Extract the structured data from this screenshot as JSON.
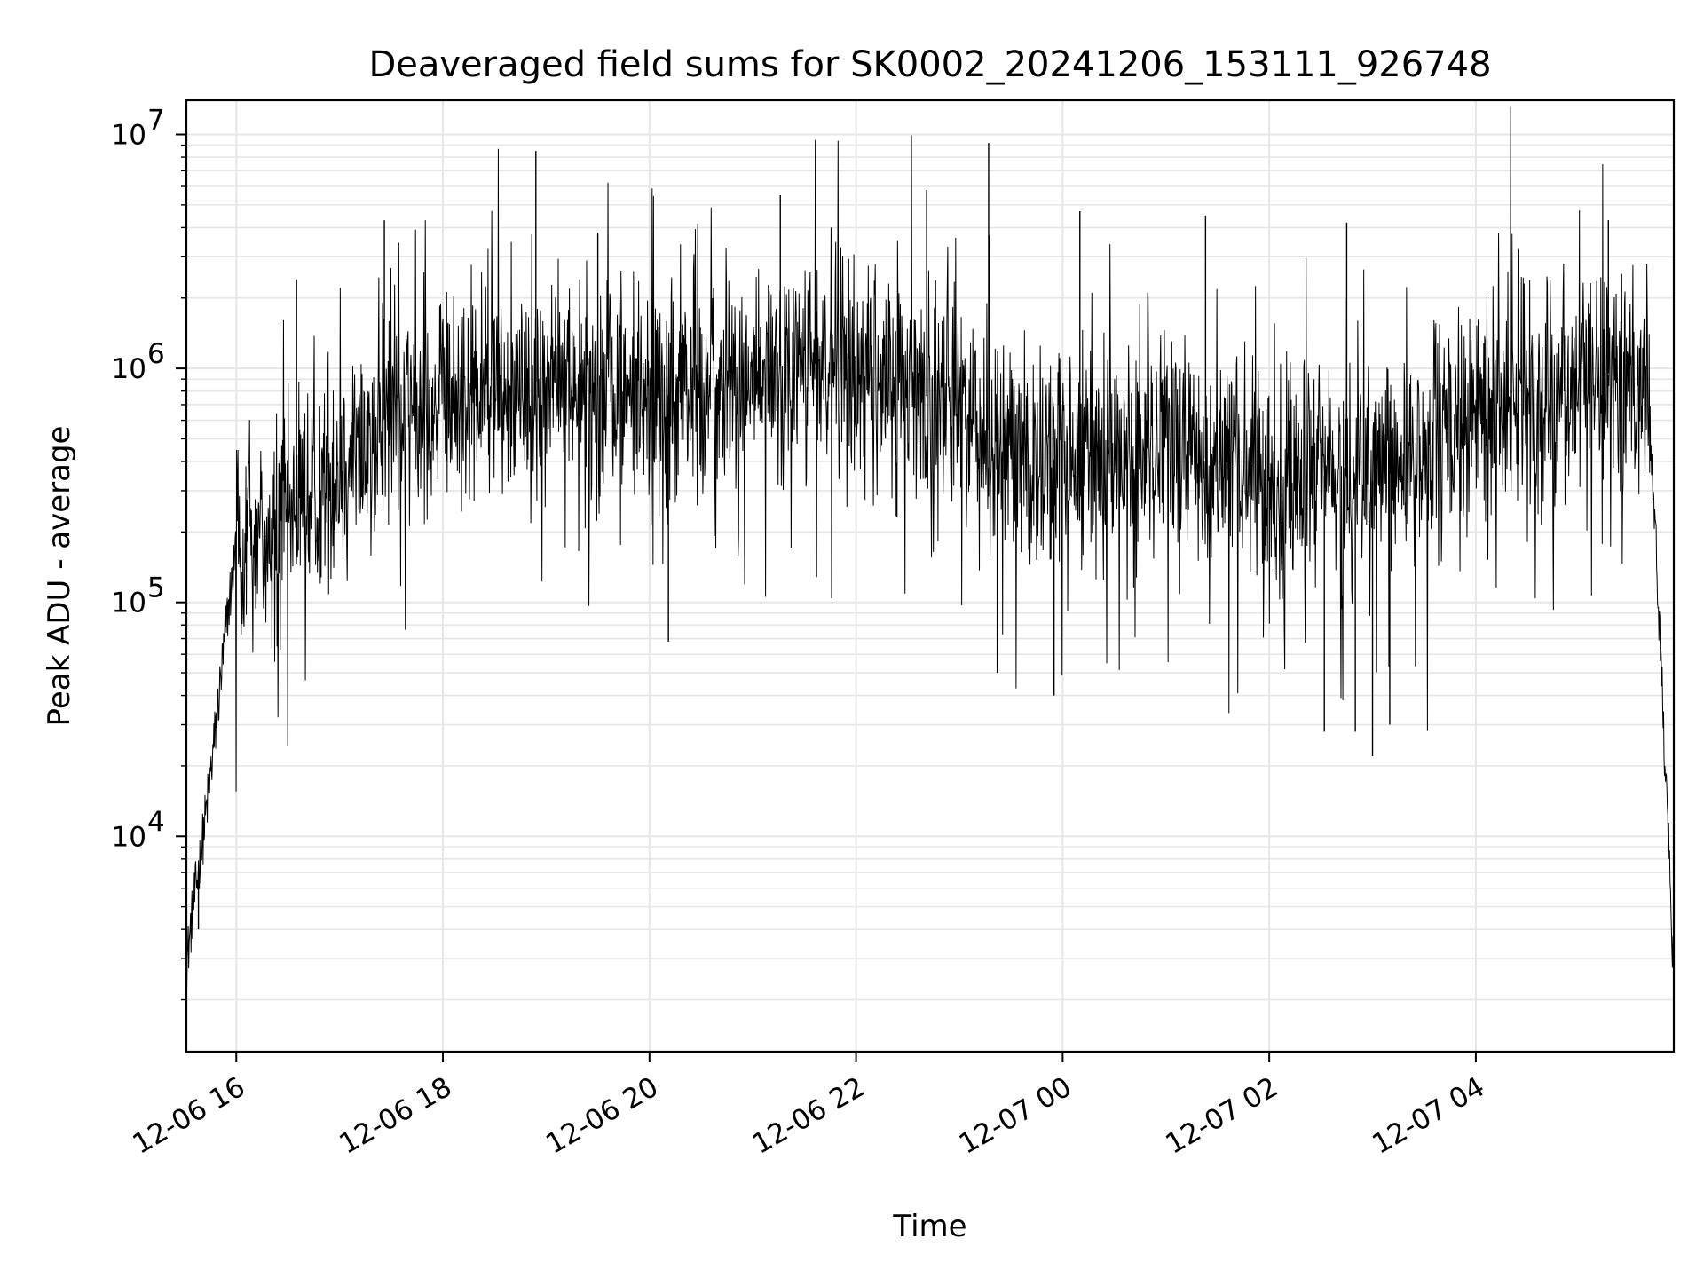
{
  "chart_data": {
    "type": "line",
    "title": "Deaveraged field sums for SK0002_20241206_153111_926748",
    "xlabel": "Time",
    "ylabel": "Peak ADU - average",
    "yscale": "log",
    "ylim": [
      1200,
      14000000
    ],
    "xlim": [
      "2024-12-06 15:31",
      "2024-12-07 05:55"
    ],
    "grid": true,
    "line_color": "#000000",
    "grid_color": "#e6e6e6",
    "x_ticks": [
      {
        "label": "12-06 16",
        "time": "2024-12-06 16:00"
      },
      {
        "label": "12-06 18",
        "time": "2024-12-06 18:00"
      },
      {
        "label": "12-06 20",
        "time": "2024-12-06 20:00"
      },
      {
        "label": "12-06 22",
        "time": "2024-12-06 22:00"
      },
      {
        "label": "12-07 00",
        "time": "2024-12-07 00:00"
      },
      {
        "label": "12-07 02",
        "time": "2024-12-07 02:00"
      },
      {
        "label": "12-07 04",
        "time": "2024-12-07 04:00"
      }
    ],
    "y_ticks": [
      {
        "base": "10",
        "exp": "4",
        "value": 10000
      },
      {
        "base": "10",
        "exp": "5",
        "value": 100000
      },
      {
        "base": "10",
        "exp": "6",
        "value": 1000000
      },
      {
        "base": "10",
        "exp": "7",
        "value": 10000000
      }
    ],
    "series": [
      {
        "points": [
          [
            "2024-12-06 15:31",
            2800
          ],
          [
            "2024-12-06 15:35",
            5000
          ],
          [
            "2024-12-06 15:40",
            9000
          ],
          [
            "2024-12-06 15:45",
            18000
          ],
          [
            "2024-12-06 15:50",
            40000
          ],
          [
            "2024-12-06 15:55",
            90000
          ],
          [
            "2024-12-06 16:00",
            170000
          ],
          [
            "2024-12-06 16:30",
            220000
          ],
          [
            "2024-12-06 17:00",
            380000
          ],
          [
            "2024-12-06 17:30",
            650000
          ],
          [
            "2024-12-06 18:00",
            700000
          ],
          [
            "2024-12-06 18:30",
            800000
          ],
          [
            "2024-12-06 19:00",
            900000
          ],
          [
            "2024-12-06 19:30",
            850000
          ],
          [
            "2024-12-06 20:00",
            750000
          ],
          [
            "2024-12-06 20:30",
            800000
          ],
          [
            "2024-12-06 21:00",
            950000
          ],
          [
            "2024-12-06 21:30",
            1100000
          ],
          [
            "2024-12-06 22:00",
            950000
          ],
          [
            "2024-12-06 22:30",
            800000
          ],
          [
            "2024-12-06 23:00",
            700000
          ],
          [
            "2024-12-06 23:30",
            450000
          ],
          [
            "2024-12-07 00:00",
            400000
          ],
          [
            "2024-12-07 00:30",
            430000
          ],
          [
            "2024-12-07 01:00",
            450000
          ],
          [
            "2024-12-07 01:30",
            400000
          ],
          [
            "2024-12-07 02:00",
            330000
          ],
          [
            "2024-12-07 02:30",
            350000
          ],
          [
            "2024-12-07 03:00",
            330000
          ],
          [
            "2024-12-07 03:30",
            450000
          ],
          [
            "2024-12-07 04:00",
            600000
          ],
          [
            "2024-12-07 04:30",
            750000
          ],
          [
            "2024-12-07 05:00",
            900000
          ],
          [
            "2024-12-07 05:30",
            1000000
          ],
          [
            "2024-12-07 05:40",
            900000
          ],
          [
            "2024-12-07 05:45",
            150000
          ],
          [
            "2024-12-07 05:50",
            20000
          ],
          [
            "2024-12-07 05:55",
            2500
          ]
        ],
        "spikes": [
          [
            "2024-12-06 18:54",
            8500000
          ],
          [
            "2024-12-06 23:17",
            9200000
          ],
          [
            "2024-12-06 22:41",
            5800000
          ],
          [
            "2024-12-06 21:16",
            5500000
          ],
          [
            "2024-12-07 05:17",
            4300000
          ],
          [
            "2024-12-06 17:26",
            4300000
          ],
          [
            "2024-12-07 00:10",
            4700000
          ],
          [
            "2024-12-06 16:35",
            2400000
          ],
          [
            "2024-12-06 19:30",
            3800000
          ],
          [
            "2024-12-07 01:23",
            4500000
          ],
          [
            "2024-12-07 02:45",
            4200000
          ]
        ],
        "dips": [
          [
            "2024-12-06 15:38",
            4000
          ],
          [
            "2024-12-06 20:11",
            68000
          ],
          [
            "2024-12-06 23:22",
            50000
          ],
          [
            "2024-12-06 23:55",
            40000
          ],
          [
            "2024-12-07 02:32",
            28000
          ],
          [
            "2024-12-07 03:00",
            22000
          ],
          [
            "2024-12-07 02:50",
            28000
          ],
          [
            "2024-12-07 03:10",
            30000
          ]
        ]
      }
    ]
  }
}
